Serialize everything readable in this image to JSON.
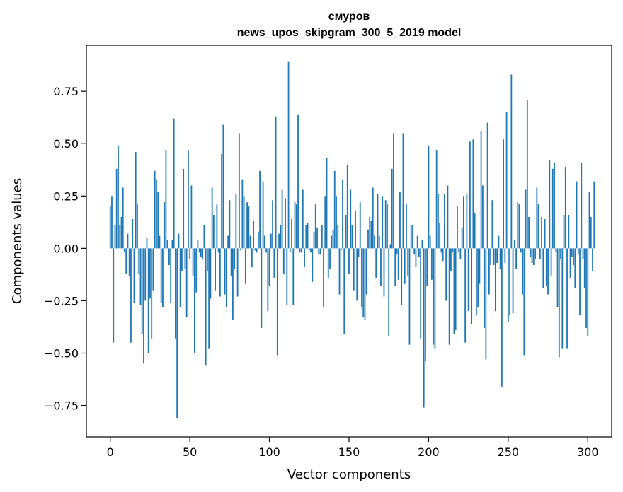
{
  "chart_data": {
    "type": "bar",
    "title_line1": "смуров",
    "title_line2": "news_upos_skipgram_300_5_2019 model",
    "xlabel": "Vector components",
    "ylabel": "Components values",
    "xlim": [
      -15,
      315
    ],
    "ylim": [
      -0.9,
      0.97
    ],
    "xticks": [
      0,
      50,
      100,
      150,
      200,
      250,
      300
    ],
    "xtick_labels": [
      "0",
      "50",
      "100",
      "150",
      "200",
      "250",
      "300"
    ],
    "yticks": [
      -0.75,
      -0.5,
      -0.25,
      0.0,
      0.25,
      0.5,
      0.75
    ],
    "ytick_labels": [
      "−0.75",
      "−0.50",
      "−0.25",
      "0.00",
      "0.25",
      "0.50",
      "0.75"
    ],
    "bar_color": "#1f77b4",
    "values": [
      0.2,
      0.25,
      -0.45,
      0.11,
      0.38,
      0.49,
      0.11,
      0.15,
      0.29,
      -0.02,
      -0.12,
      0.07,
      -0.13,
      -0.45,
      0.14,
      -0.26,
      0.46,
      0.21,
      -0.12,
      -0.27,
      -0.41,
      -0.55,
      -0.25,
      0.05,
      -0.5,
      -0.24,
      -0.43,
      -0.2,
      0.37,
      0.33,
      0.27,
      0.06,
      -0.26,
      -0.28,
      0.22,
      0.47,
      0.04,
      -0.08,
      -0.26,
      0.04,
      0.62,
      -0.43,
      -0.81,
      0.07,
      -0.28,
      -0.11,
      0.38,
      -0.1,
      -0.33,
      0.47,
      -0.05,
      0.3,
      -0.13,
      -0.5,
      -0.21,
      0.04,
      -0.02,
      -0.04,
      -0.05,
      0.11,
      -0.56,
      -0.11,
      -0.48,
      -0.24,
      0.29,
      0.16,
      -0.2,
      0.21,
      -0.02,
      -0.23,
      0.45,
      0.59,
      -0.22,
      -0.28,
      0.06,
      0.23,
      -0.13,
      -0.34,
      -0.1,
      0.26,
      -0.23,
      0.55,
      -0.01,
      0.33,
      0.25,
      -0.17,
      0.22,
      0.2,
      0.06,
      -0.09,
      0.13,
      -0.01,
      -0.02,
      0.08,
      0.37,
      -0.38,
      0.32,
      0.06,
      -0.02,
      -0.3,
      -0.18,
      0.07,
      0.23,
      -0.14,
      0.63,
      -0.51,
      0.07,
      0.11,
      0.28,
      -0.12,
      0.24,
      -0.27,
      0.89,
      -0.02,
      0.14,
      -0.27,
      0.22,
      0.21,
      0.64,
      -0.02,
      -0.02,
      0.28,
      -0.09,
      0.11,
      0.12,
      -0.01,
      -0.02,
      -0.16,
      0.08,
      0.21,
      0.1,
      -0.03,
      -0.03,
      0.11,
      -0.28,
      0.25,
      0.43,
      -0.14,
      -0.1,
      0.06,
      0.09,
      0.37,
      0.25,
      0.11,
      -0.22,
      -0.01,
      0.33,
      -0.41,
      0.16,
      0.4,
      -0.12,
      0.28,
      0.11,
      -0.2,
      0.18,
      -0.25,
      -0.04,
      0.22,
      -0.28,
      -0.33,
      -0.34,
      -0.22,
      0.09,
      0.15,
      0.13,
      0.29,
      0.06,
      -0.14,
      0.26,
      0.06,
      -0.18,
      0.25,
      -0.23,
      0.23,
      0.21,
      -0.42,
      0.02,
      0.38,
      0.55,
      -0.18,
      -0.03,
      -0.15,
      0.27,
      -0.27,
      0.55,
      -0.17,
      0.21,
      -0.13,
      -0.46,
      0.11,
      0.11,
      -0.03,
      -0.09,
      0.06,
      -0.04,
      -0.43,
      0.04,
      -0.76,
      -0.54,
      -0.18,
      0.49,
      0.06,
      -0.15,
      -0.46,
      -0.48,
      0.47,
      0.26,
      0.12,
      -0.02,
      -0.06,
      0.26,
      -0.25,
      0.3,
      -0.46,
      -0.11,
      -0.02,
      -0.41,
      -0.39,
      0.2,
      -0.02,
      -0.05,
      0.1,
      0.25,
      -0.45,
      0.26,
      -0.3,
      0.51,
      -0.36,
      0.52,
      0.17,
      -0.32,
      -0.28,
      -0.17,
      0.56,
      0.3,
      -0.38,
      -0.53,
      0.6,
      -0.22,
      -0.08,
      0.23,
      -0.08,
      -0.3,
      -0.07,
      0.06,
      -0.1,
      -0.66,
      0.52,
      -0.07,
      0.65,
      -0.35,
      -0.32,
      0.83,
      -0.31,
      0.04,
      -0.1,
      0.22,
      0.21,
      -0.02,
      -0.22,
      -0.51,
      0.28,
      0.71,
      0.15,
      -0.04,
      -0.07,
      -0.08,
      -0.05,
      0.29,
      0.21,
      -0.05,
      0.15,
      -0.19,
      0.14,
      -0.18,
      -0.22,
      0.42,
      -0.13,
      0.38,
      0.41,
      -0.02,
      -0.28,
      -0.52,
      -0.05,
      -0.48,
      0.16,
      0.39,
      -0.48,
      0.16,
      -0.14,
      -0.04,
      -0.08,
      -0.19,
      0.32,
      -0.03,
      -0.32,
      0.41,
      -0.05,
      -0.19,
      -0.38,
      -0.42,
      0.27,
      0.15,
      -0.11,
      0.32
    ]
  }
}
